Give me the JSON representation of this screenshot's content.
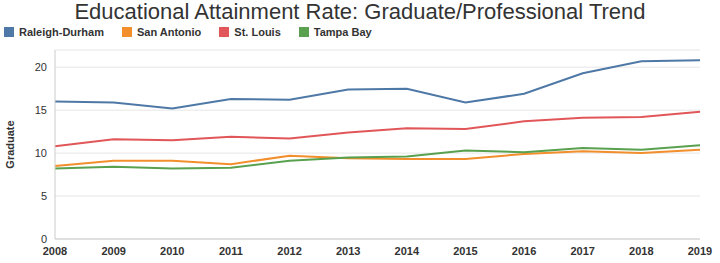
{
  "chart_data": {
    "type": "line",
    "title": "Educational Attainment Rate: Graduate/Professional Trend",
    "y_label": "Graduate",
    "categories": [
      "2008",
      "2009",
      "2010",
      "2011",
      "2012",
      "2013",
      "2014",
      "2015",
      "2016",
      "2017",
      "2018",
      "2019"
    ],
    "series": [
      {
        "name": "Raleigh-Durham",
        "color": "#4e79a7",
        "values": [
          16.0,
          15.9,
          15.2,
          16.3,
          16.2,
          17.4,
          17.5,
          15.9,
          16.9,
          19.3,
          20.7,
          20.8
        ]
      },
      {
        "name": "San Antonio",
        "color": "#f28e2b",
        "values": [
          8.5,
          9.1,
          9.1,
          8.7,
          9.7,
          9.4,
          9.3,
          9.3,
          9.9,
          10.2,
          10.0,
          10.4
        ]
      },
      {
        "name": "St. Louis",
        "color": "#e15759",
        "values": [
          10.8,
          11.6,
          11.5,
          11.9,
          11.7,
          12.4,
          12.9,
          12.8,
          13.7,
          14.1,
          14.2,
          14.8
        ]
      },
      {
        "name": "Tampa Bay",
        "color": "#59a14f",
        "values": [
          8.2,
          8.4,
          8.2,
          8.3,
          9.1,
          9.5,
          9.6,
          10.3,
          10.1,
          10.6,
          10.4,
          10.9
        ]
      }
    ],
    "ylim": [
      0,
      22
    ],
    "yticks": [
      0,
      5,
      10,
      15,
      20
    ],
    "grid": true,
    "legend": "top-left"
  }
}
